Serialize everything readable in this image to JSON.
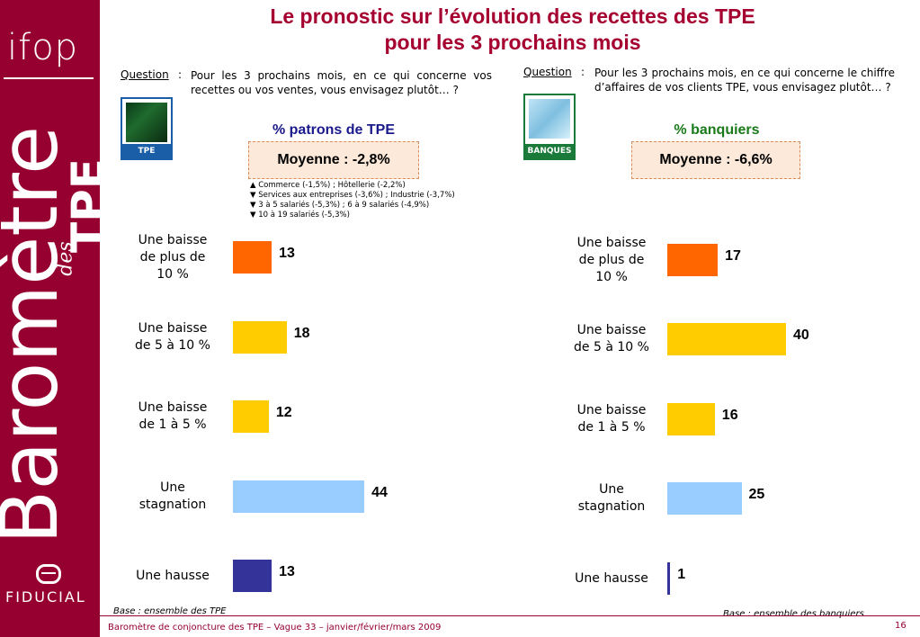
{
  "brand": {
    "ifop": "ifop",
    "barometre": "Baromètre",
    "des": "des",
    "tpe": "TPE",
    "fiducial": "FIDUCIAL"
  },
  "title": {
    "line1": "Le pronostic sur l’évolution des recettes des TPE",
    "line2": "pour les 3 prochains mois"
  },
  "left": {
    "question_label": "Question",
    "question_colon": ":",
    "question_text": "Pour les 3 prochains mois, en ce qui concerne vos recettes ou vos ventes, vous envisagez plutôt… ?",
    "logo_caption": "TPE",
    "panel_title": "% patrons de TPE",
    "average": "Moyenne : -2,8%",
    "notes": [
      "▲ Commerce (-1,5%) ; Hôtellerie (-2,2%)",
      "▼ Services aux entreprises (-3,6%) ; Industrie (-3,7%)",
      "▼ 3 à 5 salariés (-5,3%) ; 6 à 9 salariés (-4,9%)",
      "▼ 10 à 19 salariés (-5,3%)"
    ],
    "base": "Base : ensemble des TPE"
  },
  "right": {
    "question_label": "Question",
    "question_colon": ":",
    "question_text": "Pour les 3 prochains mois, en ce qui concerne le chiffre d’affaires de vos clients TPE, vous envisagez plutôt… ?",
    "logo_caption": "BANQUES",
    "panel_title": "% banquiers",
    "average": "Moyenne : -6,6%",
    "base": "Base : ensemble des banquiers"
  },
  "chart_data": [
    {
      "type": "bar",
      "orientation": "horizontal",
      "categories": [
        "Une baisse de plus de 10 %",
        "Une baisse de 5 à 10 %",
        "Une baisse de 1 à 5 %",
        "Une stagnation",
        "Une hausse"
      ],
      "values": [
        13,
        18,
        12,
        44,
        13
      ],
      "colors": [
        "#ff6600",
        "#ffcc00",
        "#ffcc00",
        "#99ccff",
        "#333399"
      ],
      "title": "% patrons de TPE"
    },
    {
      "type": "bar",
      "orientation": "horizontal",
      "categories": [
        "Une baisse de plus de 10 %",
        "Une baisse de 5 à 10 %",
        "Une baisse de 1 à 5 %",
        "Une stagnation",
        "Une hausse"
      ],
      "values": [
        17,
        40,
        16,
        25,
        1
      ],
      "colors": [
        "#ff6600",
        "#ffcc00",
        "#ffcc00",
        "#99ccff",
        "#333399"
      ],
      "title": "% banquiers"
    }
  ],
  "footer": {
    "text": "Baromètre de conjoncture des TPE – Vague 33 – janvier/février/mars 2009",
    "page": "16"
  }
}
